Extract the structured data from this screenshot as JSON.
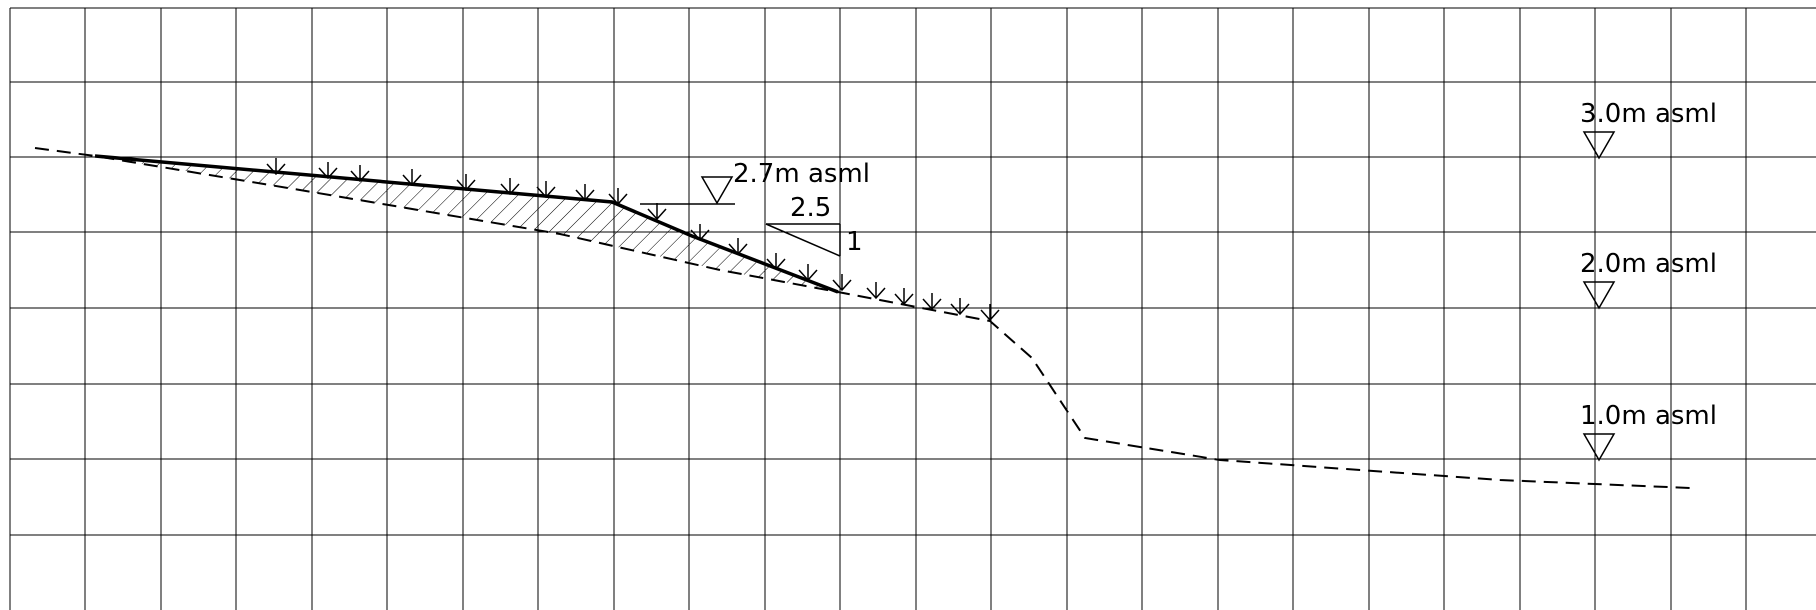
{
  "labels": {
    "level_3": "3.0m  asml",
    "level_2": "2.0m  asml",
    "level_1": "1.0m  asml",
    "level_fill": "2.7m  asml",
    "slope_run": "2.5",
    "slope_rise": "1"
  }
}
